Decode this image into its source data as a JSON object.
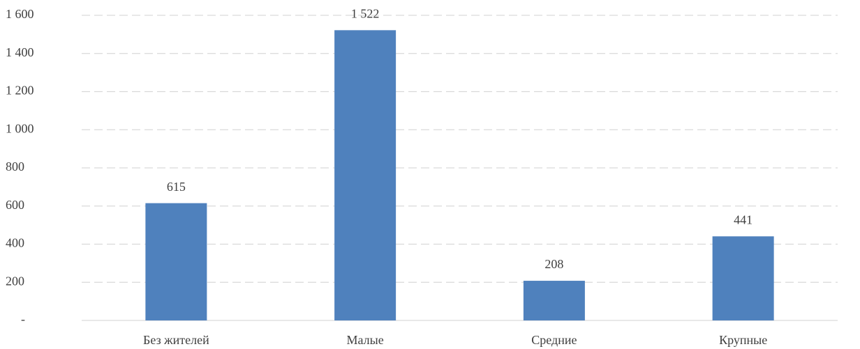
{
  "chart_data": {
    "type": "bar",
    "categories": [
      "Без жителей",
      "Малые",
      "Средние",
      "Крупные"
    ],
    "values": [
      615,
      1522,
      208,
      441
    ],
    "value_labels": [
      "615",
      "1 522",
      "208",
      "441"
    ],
    "color": "#4f81bd",
    "ylim": [
      0,
      1600
    ],
    "yticks": [
      {
        "value": 0,
        "label": "-"
      },
      200,
      400,
      600,
      800,
      {
        "value": 1000,
        "label": "1 000"
      },
      {
        "value": 1200,
        "label": "1 200"
      },
      {
        "value": 1400,
        "label": "1 400"
      },
      {
        "value": 1600,
        "label": "1 600"
      }
    ],
    "grid": true
  }
}
